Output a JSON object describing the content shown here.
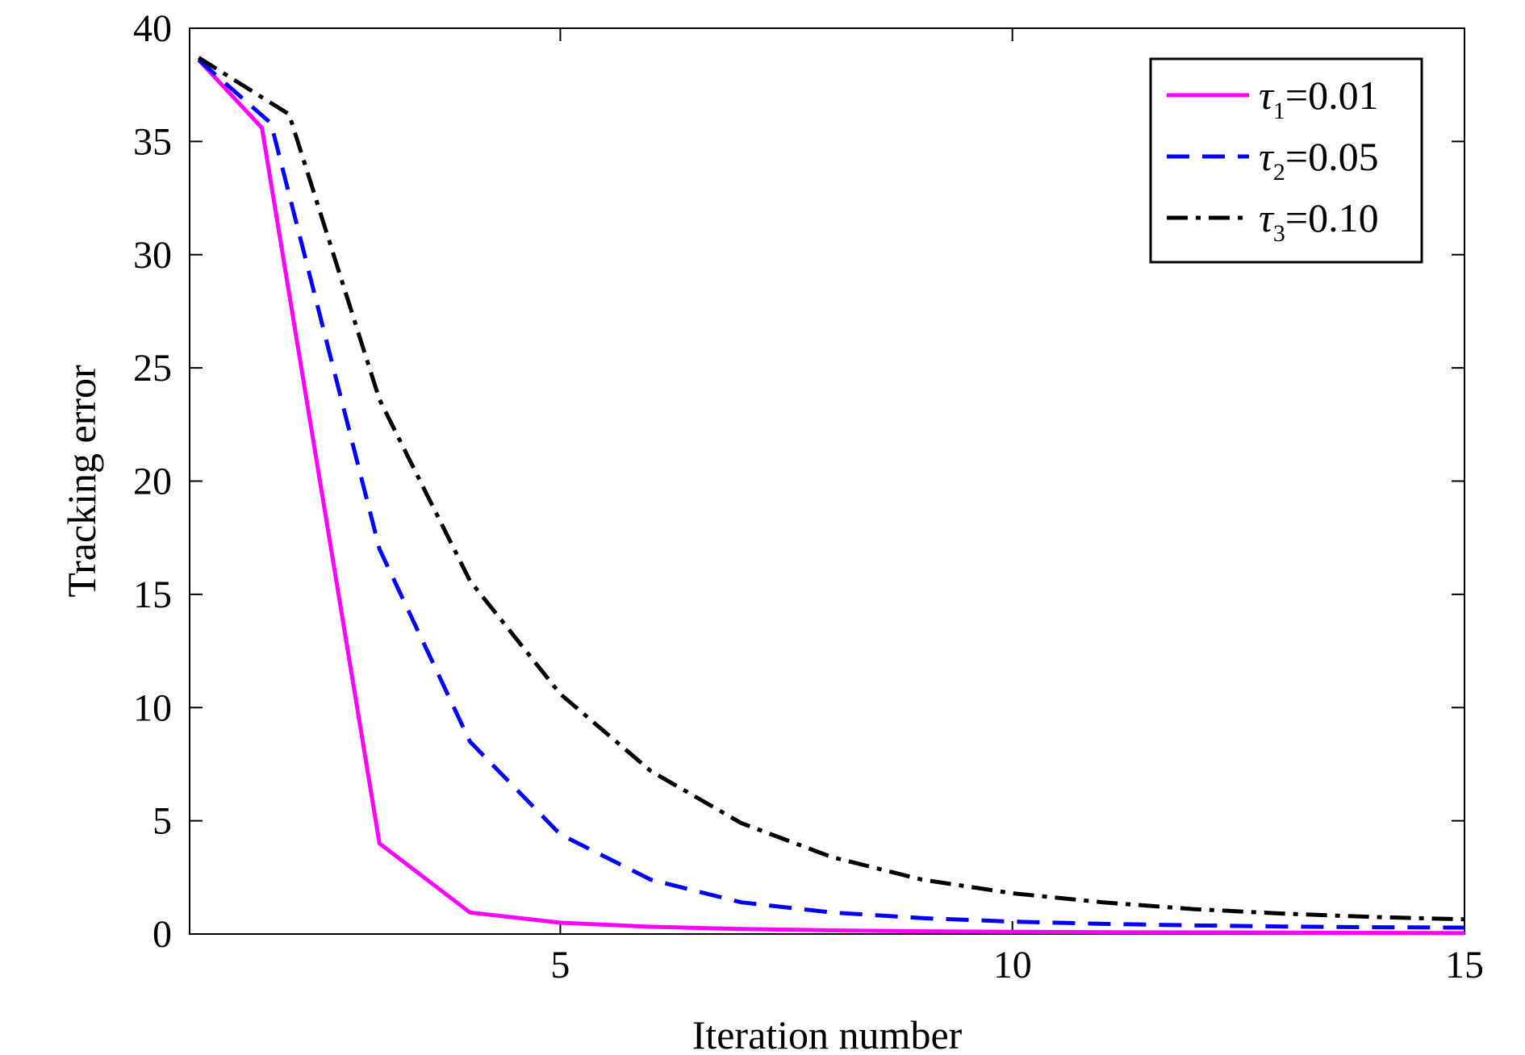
{
  "chart_data": {
    "type": "line",
    "xlabel": "Iteration number",
    "ylabel": "Tracking error",
    "xlim": [
      0.9,
      15
    ],
    "ylim": [
      0,
      40
    ],
    "xticks": [
      5,
      10,
      15
    ],
    "yticks": [
      0,
      5,
      10,
      15,
      20,
      25,
      30,
      35,
      40
    ],
    "grid": false,
    "legend_position": "top-right",
    "x": [
      1,
      1.7,
      2,
      3,
      4,
      5,
      6,
      7,
      8,
      9,
      10,
      11,
      12,
      13,
      14,
      15
    ],
    "series": [
      {
        "name": "τ1=0.01",
        "label_main": "τ",
        "label_sub": "1",
        "label_value": "=0.01",
        "color": "#ff00ff",
        "dash": "solid",
        "points": [
          [
            1,
            38.6
          ],
          [
            1.7,
            35.6
          ],
          [
            3,
            4.0
          ],
          [
            4,
            0.95
          ],
          [
            5,
            0.5
          ],
          [
            6,
            0.32
          ],
          [
            7,
            0.22
          ],
          [
            8,
            0.16
          ],
          [
            9,
            0.12
          ],
          [
            10,
            0.1
          ],
          [
            11,
            0.08
          ],
          [
            12,
            0.07
          ],
          [
            13,
            0.06
          ],
          [
            14,
            0.05
          ],
          [
            15,
            0.04
          ]
        ]
      },
      {
        "name": "τ2=0.05",
        "label_main": "τ",
        "label_sub": "2",
        "label_value": "=0.05",
        "color": "#0000ff",
        "dash": "dashed",
        "points": [
          [
            1,
            38.6
          ],
          [
            1.8,
            35.8
          ],
          [
            3,
            17.0
          ],
          [
            4,
            8.5
          ],
          [
            5,
            4.4
          ],
          [
            6,
            2.4
          ],
          [
            7,
            1.4
          ],
          [
            8,
            0.95
          ],
          [
            9,
            0.7
          ],
          [
            10,
            0.55
          ],
          [
            11,
            0.45
          ],
          [
            12,
            0.38
          ],
          [
            13,
            0.33
          ],
          [
            14,
            0.3
          ],
          [
            15,
            0.28
          ]
        ]
      },
      {
        "name": "τ3=0.10",
        "label_main": "τ",
        "label_sub": "3",
        "label_value": "=0.10",
        "color": "#000000",
        "dash": "dashdot",
        "points": [
          [
            1,
            38.7
          ],
          [
            2,
            36.2
          ],
          [
            3,
            23.6
          ],
          [
            4,
            15.6
          ],
          [
            5,
            10.6
          ],
          [
            6,
            7.2
          ],
          [
            7,
            4.9
          ],
          [
            8,
            3.4
          ],
          [
            9,
            2.4
          ],
          [
            10,
            1.8
          ],
          [
            11,
            1.4
          ],
          [
            12,
            1.1
          ],
          [
            13,
            0.9
          ],
          [
            14,
            0.75
          ],
          [
            15,
            0.65
          ]
        ]
      }
    ]
  }
}
